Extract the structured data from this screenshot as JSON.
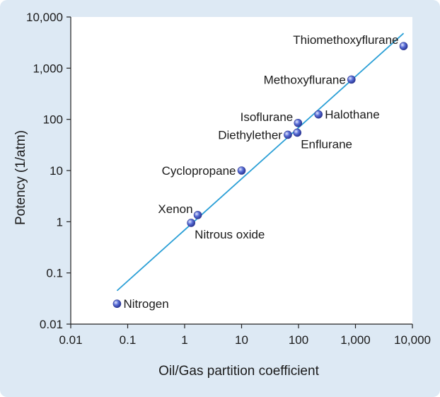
{
  "chart_data": {
    "type": "scatter",
    "title": "",
    "xlabel": "Oil/Gas partition coefficient",
    "ylabel": "Potency (1/atm)",
    "xscale": "log",
    "yscale": "log",
    "xlim": [
      0.01,
      10000
    ],
    "ylim": [
      0.01,
      10000
    ],
    "x_ticks": [
      0.01,
      0.1,
      1,
      10,
      100,
      1000,
      10000
    ],
    "x_tick_labels": [
      "0.01",
      "0.1",
      "1",
      "10",
      "100",
      "1,000",
      "10,000"
    ],
    "y_ticks": [
      0.01,
      0.1,
      1,
      10,
      100,
      1000,
      10000
    ],
    "y_tick_labels": [
      "0.01",
      "0.1",
      "1",
      "10",
      "100",
      "1,000",
      "10,000"
    ],
    "grid": false,
    "colors": {
      "panel": "#dde9f4",
      "plot_area": "#ffffff",
      "trend_line": "#2a9fd6",
      "marker": "#5a6fd8"
    },
    "points": [
      {
        "label": "Nitrogen",
        "x": 0.065,
        "y": 0.025,
        "label_side": "right"
      },
      {
        "label": "Nitrous oxide",
        "x": 1.3,
        "y": 0.95,
        "label_side": "below-right"
      },
      {
        "label": "Xenon",
        "x": 1.7,
        "y": 1.35,
        "label_side": "above-left"
      },
      {
        "label": "Cyclopropane",
        "x": 10,
        "y": 10,
        "label_side": "left"
      },
      {
        "label": "Diethylether",
        "x": 65,
        "y": 50,
        "label_side": "left"
      },
      {
        "label": "Enflurane",
        "x": 95,
        "y": 55,
        "label_side": "below-right"
      },
      {
        "label": "Isoflurane",
        "x": 98,
        "y": 85,
        "label_side": "above-left"
      },
      {
        "label": "Halothane",
        "x": 224,
        "y": 125,
        "label_side": "right"
      },
      {
        "label": "Methoxyflurane",
        "x": 850,
        "y": 600,
        "label_side": "left"
      },
      {
        "label": "Thiomethoxyflurane",
        "x": 7000,
        "y": 2700,
        "label_side": "above-left"
      }
    ],
    "trend_line": {
      "x": [
        0.065,
        7000
      ],
      "y": [
        0.045,
        4800
      ]
    }
  }
}
